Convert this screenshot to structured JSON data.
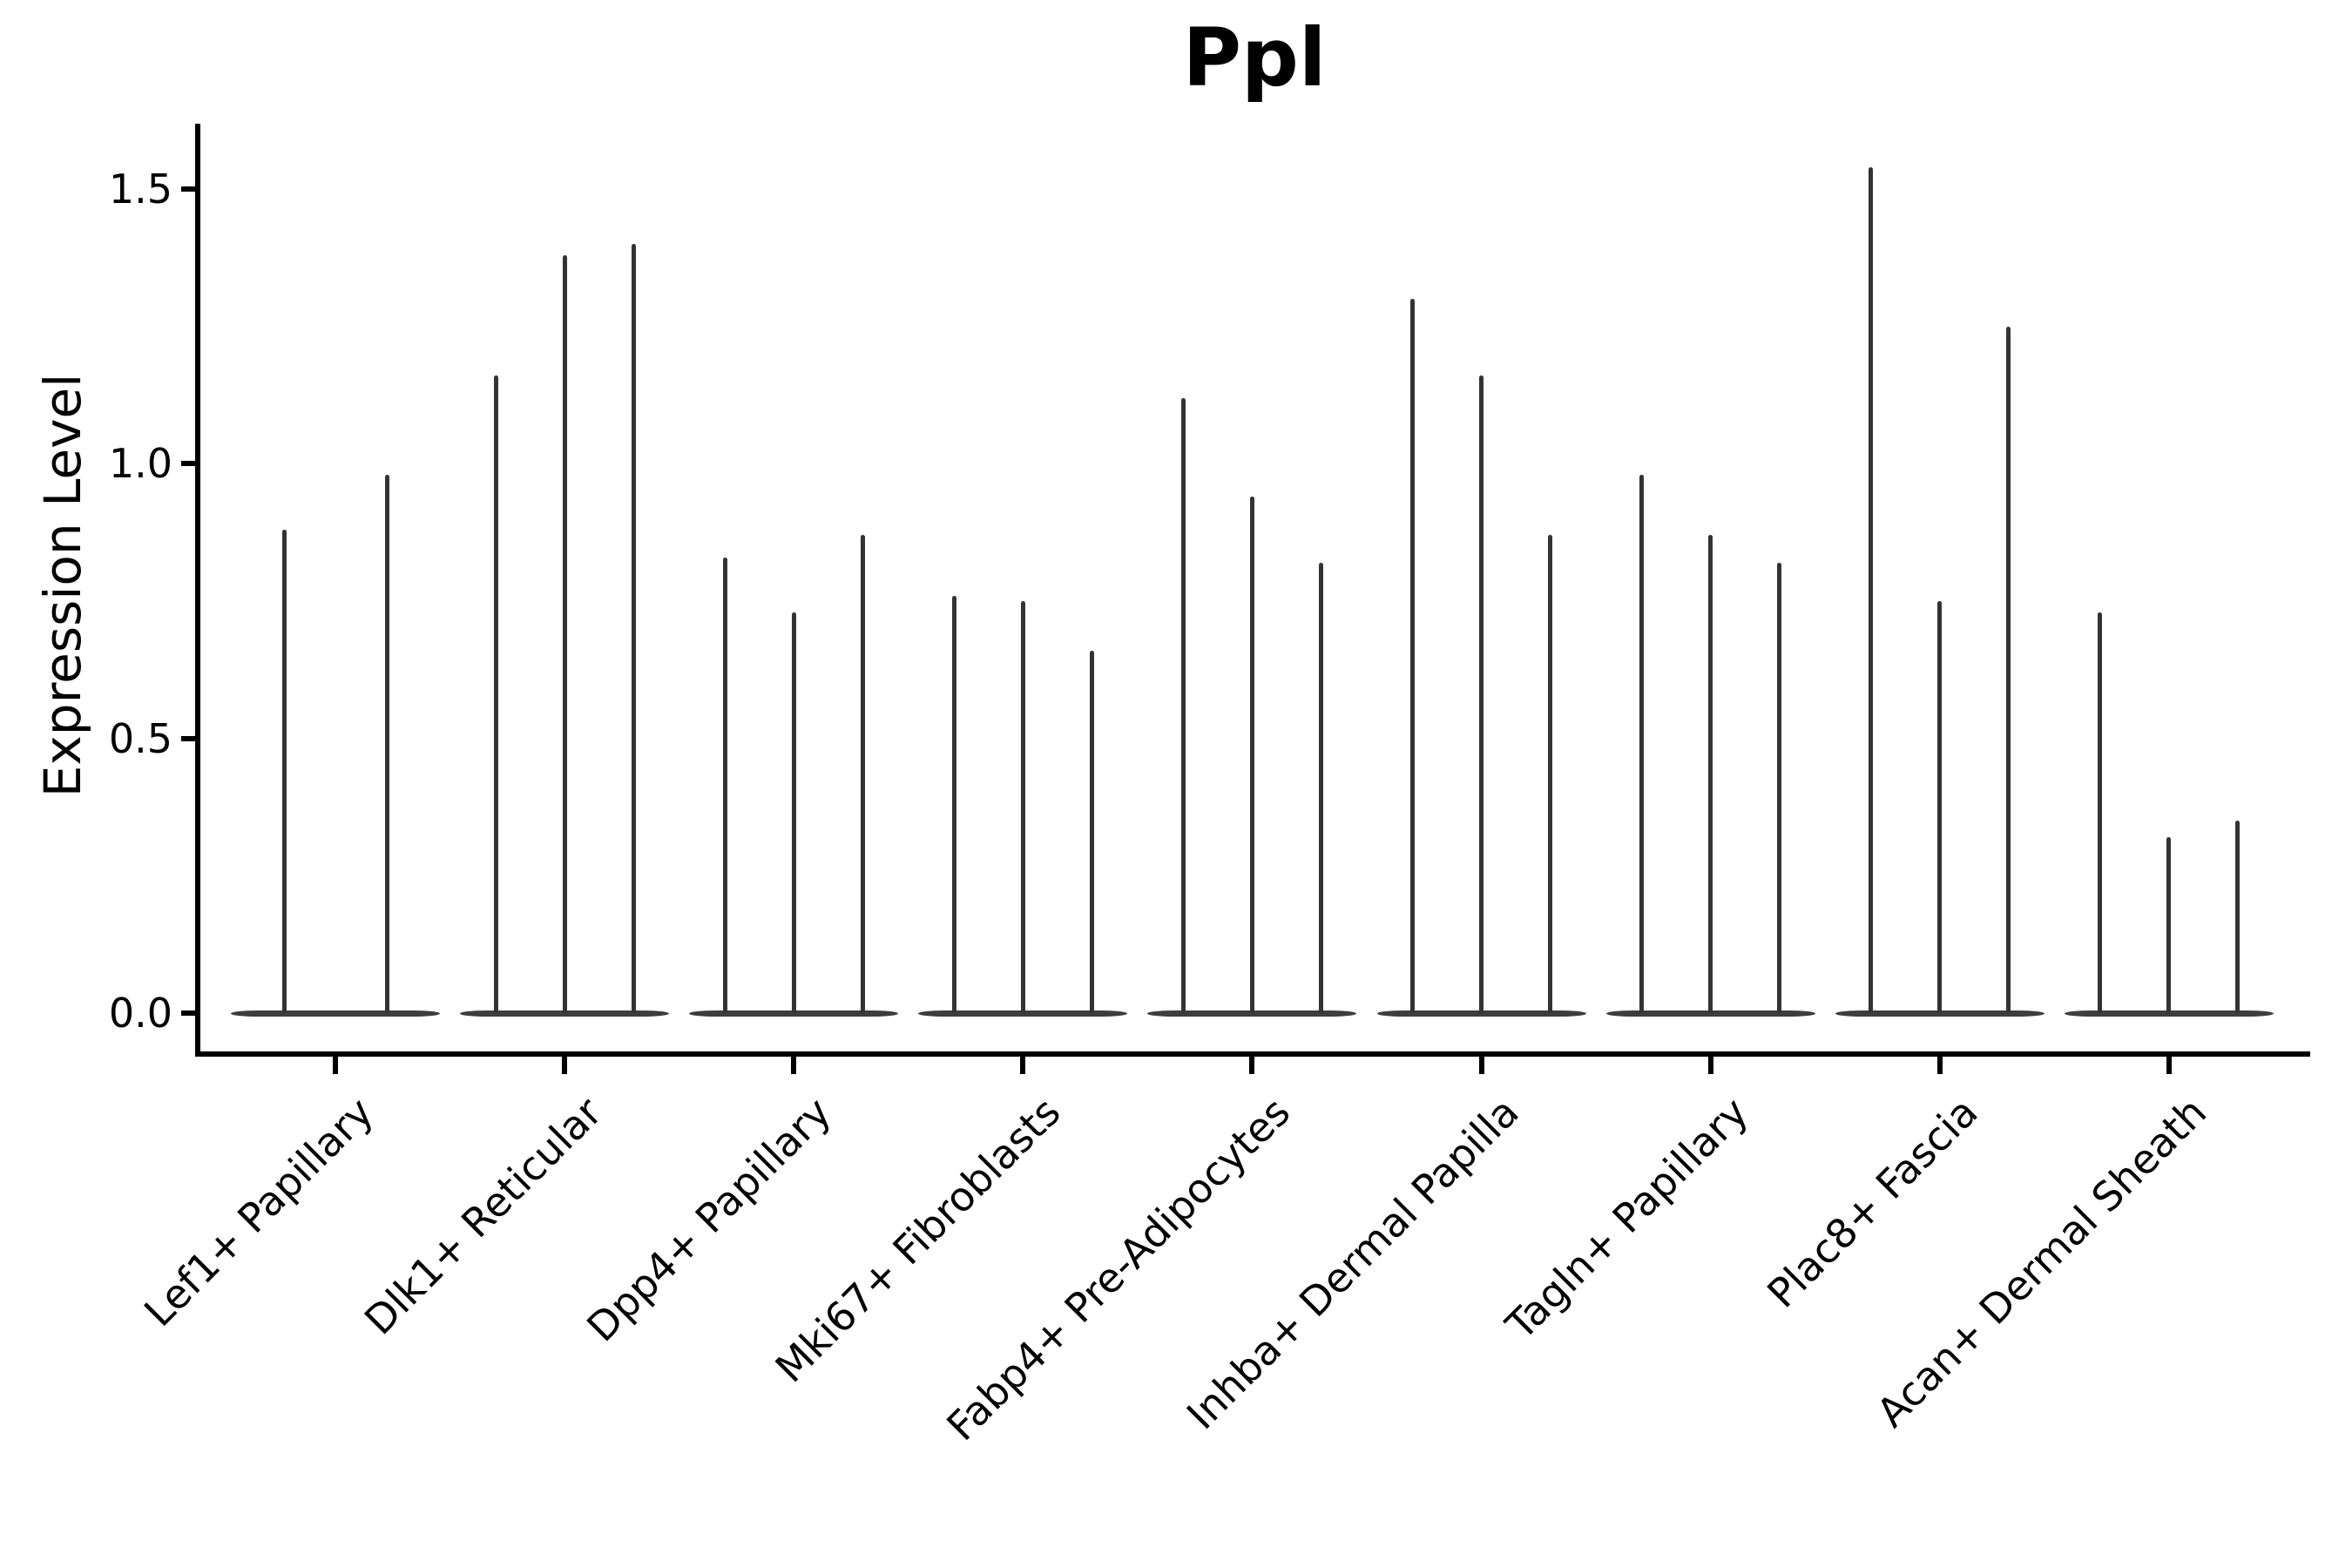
{
  "chart_data": {
    "type": "violin",
    "title": "Ppl",
    "ylabel": "Expression Level",
    "xlabel": "",
    "yticks": [
      0.0,
      0.5,
      1.0,
      1.5
    ],
    "ylim": [
      -0.07,
      1.62
    ],
    "grid": false,
    "legend": false,
    "description": "Violin plot of Ppl expression; violins are collapsed at 0 with thin spikes to each violin's maximum expression value",
    "groups": [
      {
        "category": "Lef1+ Papillary",
        "violin_maxima": [
          0.88,
          0.98
        ]
      },
      {
        "category": "Dlk1+ Reticular",
        "violin_maxima": [
          1.16,
          1.38,
          1.4
        ]
      },
      {
        "category": "Dpp4+ Papillary",
        "violin_maxima": [
          0.83,
          0.73,
          0.87
        ]
      },
      {
        "category": "Mki67+ Fibroblasts",
        "violin_maxima": [
          0.76,
          0.75,
          0.66
        ]
      },
      {
        "category": "Fabp4+ Pre-Adipocytes",
        "violin_maxima": [
          1.12,
          0.94,
          0.82
        ]
      },
      {
        "category": "Inhba+ Dermal Papilla",
        "violin_maxima": [
          1.3,
          1.16,
          0.87
        ]
      },
      {
        "category": "Tagln+ Papillary",
        "violin_maxima": [
          0.98,
          0.87,
          0.82
        ]
      },
      {
        "category": "Plac8+ Fascia",
        "violin_maxima": [
          1.54,
          0.75,
          1.25
        ]
      },
      {
        "category": "Acan+ Dermal Sheath",
        "violin_maxima": [
          0.73,
          0.32,
          0.35
        ]
      }
    ],
    "colors": {
      "violin": "#3b3b3b",
      "axis": "#000000",
      "text": "#000000",
      "background": "#ffffff"
    }
  }
}
